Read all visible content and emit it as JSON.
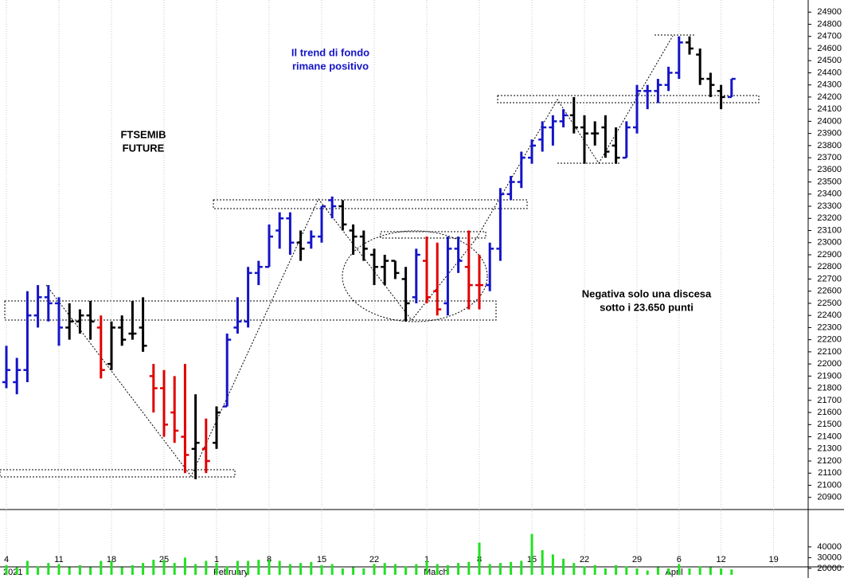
{
  "chart_data": {
    "type": "ohlc",
    "categories": [
      "4",
      null,
      null,
      null,
      null,
      "11",
      null,
      null,
      null,
      null,
      "18",
      null,
      null,
      null,
      null,
      "25",
      null,
      null,
      null,
      null,
      "1",
      null,
      null,
      null,
      null,
      "8",
      null,
      null,
      null,
      null,
      "15",
      null,
      null,
      null,
      null,
      "22",
      null,
      null,
      null,
      null,
      "1",
      null,
      null,
      null,
      null,
      "8",
      null,
      null,
      null,
      null,
      "15",
      null,
      null,
      null,
      null,
      "22",
      null,
      null,
      null,
      null,
      "29",
      null,
      null,
      null,
      "6",
      null,
      null,
      null,
      "12",
      null,
      null,
      null,
      null,
      "19",
      null
    ],
    "month_labels": [
      {
        "index": 0,
        "label": "2021"
      },
      {
        "index": 20,
        "label": "February"
      },
      {
        "index": 40,
        "label": "March"
      },
      {
        "index": 63,
        "label": "April"
      }
    ],
    "open": [
      21850,
      21850,
      21950,
      22400,
      22550,
      22500,
      22300,
      22350,
      22400,
      22300,
      22000,
      22300,
      22250,
      22300,
      21900,
      21800,
      21600,
      21400,
      21300,
      21300,
      21350,
      21650,
      22300,
      22350,
      22750,
      22800,
      23100,
      23200,
      23000,
      23000,
      23050,
      23350,
      23300,
      23100,
      23050,
      22900,
      22800,
      22850,
      22700,
      22550,
      22850,
      22600,
      22500,
      22950,
      22800,
      22650,
      22650,
      22950,
      23400,
      23500,
      23700,
      23850,
      23950,
      24000,
      24050,
      23950,
      23900,
      23950,
      23800,
      23700,
      23950,
      24250,
      24250,
      24300,
      24400,
      24650,
      24550,
      24350,
      24250,
      24200,
      null,
      null,
      null,
      null,
      null
    ],
    "high": [
      22150,
      22050,
      22600,
      22650,
      22650,
      22550,
      22500,
      22450,
      22520,
      22400,
      22350,
      22400,
      22520,
      22550,
      22000,
      21950,
      21900,
      22000,
      21750,
      21550,
      21650,
      22250,
      22550,
      22800,
      22850,
      23150,
      23250,
      23250,
      23100,
      23100,
      23300,
      23380,
      23350,
      23150,
      23100,
      22950,
      22900,
      22850,
      22800,
      22950,
      23050,
      23000,
      23050,
      23050,
      23100,
      22900,
      23000,
      23450,
      23550,
      23750,
      23850,
      24000,
      24050,
      24100,
      24200,
      24050,
      24000,
      24050,
      23950,
      24000,
      24300,
      24300,
      24350,
      24450,
      24700,
      24700,
      24600,
      24400,
      24300,
      24350,
      null,
      null,
      null,
      null,
      null
    ],
    "low": [
      21800,
      21750,
      21850,
      22300,
      22350,
      22150,
      22200,
      22250,
      22200,
      21880,
      21950,
      22150,
      22200,
      22100,
      21600,
      21400,
      21350,
      21100,
      21050,
      21100,
      21300,
      21650,
      22250,
      22300,
      22650,
      22800,
      22950,
      22900,
      22850,
      22950,
      23000,
      23200,
      23100,
      22900,
      22850,
      22650,
      22650,
      22700,
      22350,
      22500,
      22500,
      22400,
      22400,
      22750,
      22450,
      22450,
      22600,
      22850,
      23350,
      23450,
      23650,
      23750,
      23800,
      23950,
      23900,
      23650,
      23800,
      23700,
      23650,
      23700,
      23900,
      24100,
      24150,
      24250,
      24350,
      24550,
      24300,
      24200,
      24100,
      24200,
      null,
      null,
      null,
      null,
      null
    ],
    "close": [
      21950,
      21950,
      22400,
      22550,
      22500,
      22300,
      22350,
      22400,
      22350,
      21950,
      22300,
      22200,
      22250,
      22150,
      21800,
      21500,
      21450,
      21250,
      21350,
      21200,
      21600,
      22200,
      22350,
      22750,
      22800,
      23050,
      23200,
      23000,
      22950,
      23050,
      23300,
      23300,
      23150,
      23050,
      22950,
      22800,
      22850,
      22750,
      22500,
      22900,
      22550,
      22450,
      22950,
      22850,
      22650,
      22650,
      22950,
      23400,
      23500,
      23700,
      23800,
      23950,
      24000,
      24050,
      23950,
      23900,
      23900,
      23750,
      23700,
      23950,
      24250,
      24250,
      24300,
      24400,
      24650,
      24600,
      24350,
      24300,
      24200,
      24350,
      null,
      null,
      null,
      null,
      null
    ],
    "bar_colors": [
      "#1414c8",
      "#1414c8",
      "#1414c8",
      "#1414c8",
      "#1414c8",
      "#1414c8",
      "#000000",
      "#000000",
      "#000000",
      "#e00000",
      "#000000",
      "#000000",
      "#000000",
      "#000000",
      "#e00000",
      "#e00000",
      "#e00000",
      "#e00000",
      "#000000",
      "#e00000",
      "#000000",
      "#1414c8",
      "#1414c8",
      "#1414c8",
      "#1414c8",
      "#1414c8",
      "#1414c8",
      "#1414c8",
      "#000000",
      "#1414c8",
      "#1414c8",
      "#1414c8",
      "#000000",
      "#000000",
      "#000000",
      "#000000",
      "#000000",
      "#000000",
      "#000000",
      "#1414c8",
      "#e00000",
      "#e00000",
      "#1414c8",
      "#1414c8",
      "#e00000",
      "#e00000",
      "#1414c8",
      "#1414c8",
      "#1414c8",
      "#1414c8",
      "#1414c8",
      "#1414c8",
      "#1414c8",
      "#1414c8",
      "#000000",
      "#000000",
      "#000000",
      "#000000",
      "#000000",
      "#1414c8",
      "#1414c8",
      "#1414c8",
      "#1414c8",
      "#1414c8",
      "#1414c8",
      "#000000",
      "#000000",
      "#000000",
      "#000000",
      "#1414c8",
      null,
      null,
      null,
      null,
      null
    ],
    "ylim": [
      20800,
      25000
    ],
    "yticks": [
      20900,
      21000,
      21100,
      21200,
      21300,
      21400,
      21500,
      21600,
      21700,
      21800,
      21900,
      22000,
      22100,
      22200,
      22300,
      22400,
      22500,
      22600,
      22700,
      22800,
      22900,
      23000,
      23100,
      23200,
      23300,
      23400,
      23500,
      23600,
      23700,
      23800,
      23900,
      24000,
      24100,
      24200,
      24300,
      24400,
      24500,
      24600,
      24700,
      24800,
      24900
    ],
    "volume": [
      23000,
      21000,
      27000,
      22000,
      25000,
      24000,
      21000,
      23000,
      21000,
      27000,
      27000,
      21000,
      23000,
      25000,
      28000,
      28000,
      25000,
      30000,
      24000,
      27000,
      25000,
      22000,
      27000,
      27000,
      28000,
      28000,
      27000,
      24000,
      25000,
      26000,
      23000,
      24000,
      20000,
      21000,
      20000,
      24000,
      25000,
      24000,
      22000,
      24000,
      27000,
      24000,
      23000,
      25000,
      26000,
      44000,
      24000,
      25000,
      26000,
      27000,
      52000,
      37000,
      33000,
      29000,
      25000,
      22000,
      23000,
      20000,
      23000,
      22000,
      20000,
      18000,
      21000,
      20000,
      24000,
      20000,
      22000,
      21000,
      20000,
      19000,
      null,
      null,
      null,
      null,
      null
    ],
    "volume_color": "#22e022",
    "volume_ylim": [
      14000,
      74000
    ],
    "volume_yticks": [
      20000,
      30000,
      40000
    ],
    "annotations": [
      {
        "lines": [
          "FTSEMIB",
          "FUTURE"
        ],
        "color": "#000000"
      },
      {
        "lines": [
          "Il trend di fondo",
          "rimane positivo"
        ],
        "color": "#1414c8"
      },
      {
        "lines": [
          "Negativa solo una discesa",
          "sotto i 23.650 punti"
        ],
        "color": "#000000"
      }
    ]
  }
}
